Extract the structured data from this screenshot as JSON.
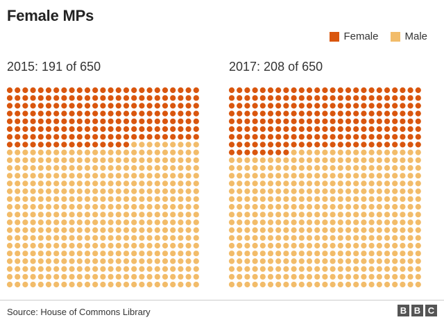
{
  "title": "Female MPs",
  "legend": {
    "female": "Female",
    "male": "Male"
  },
  "colors": {
    "female": "#d9560e",
    "male": "#f2bc6a"
  },
  "source": "Source: House of Commons Library",
  "logo": [
    "B",
    "B",
    "C"
  ],
  "chart_data": [
    {
      "type": "waffle",
      "title": "2015: 191 of 650",
      "total": 650,
      "columns": 25,
      "series": [
        {
          "name": "Female",
          "value": 191
        },
        {
          "name": "Male",
          "value": 459
        }
      ]
    },
    {
      "type": "waffle",
      "title": "2017: 208 of 650",
      "total": 650,
      "columns": 25,
      "series": [
        {
          "name": "Female",
          "value": 208
        },
        {
          "name": "Male",
          "value": 442
        }
      ]
    }
  ]
}
